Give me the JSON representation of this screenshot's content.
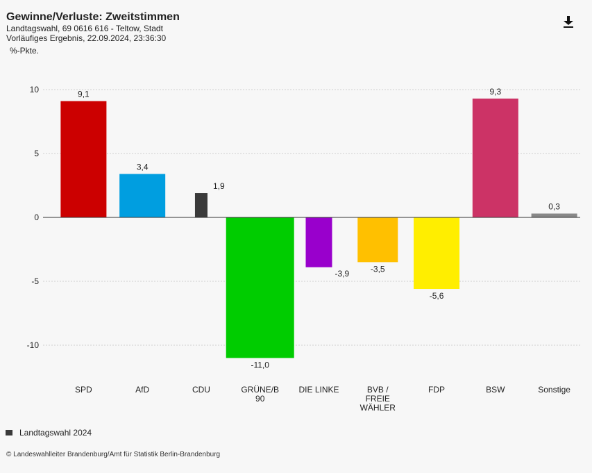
{
  "header": {
    "title": "Gewinne/Verluste: Zweitstimmen",
    "subtitle1": "Landtagswahl, 69 0616 616 - Teltow, Stadt",
    "subtitle2": "Vorläufiges Ergebnis, 22.09.2024, 23:36:30",
    "unit": "%-Pkte."
  },
  "toolbar": {
    "download_icon": "download-icon"
  },
  "legend": {
    "label": "Landtagswahl 2024",
    "color": "#3a3a3a"
  },
  "footer": {
    "source": "© Landeswahlleiter Brandenburg/Amt für Statistik Berlin-Brandenburg"
  },
  "chart_data": {
    "type": "bar",
    "categories": [
      "SPD",
      "AfD",
      "CDU",
      "GRÜNE/B 90",
      "DIE LINKE",
      "BVB / FREIE WÄHLER",
      "FDP",
      "BSW",
      "Sonstige"
    ],
    "category_lines": [
      [
        "SPD"
      ],
      [
        "AfD"
      ],
      [
        "CDU"
      ],
      [
        "GRÜNE/B",
        "90"
      ],
      [
        "DIE LINKE"
      ],
      [
        "BVB /",
        "FREIE",
        "WÄHLER"
      ],
      [
        "FDP"
      ],
      [
        "BSW"
      ],
      [
        "Sonstige"
      ]
    ],
    "values": [
      9.1,
      3.4,
      1.9,
      -11.0,
      -3.9,
      -3.5,
      -5.6,
      9.3,
      0.3
    ],
    "value_labels": [
      "9,1",
      "3,4",
      "1,9",
      "-11,0",
      "-3,9",
      "-3,5",
      "-5,6",
      "9,3",
      "0,3"
    ],
    "colors": [
      "#cc0000",
      "#009ee0",
      "#3a3a3a",
      "#00cc00",
      "#9900cc",
      "#ffc000",
      "#ffee00",
      "#cc3366",
      "#888888"
    ],
    "yticks": [
      10,
      5,
      0,
      -5,
      -10
    ],
    "ylim": [
      -11,
      10
    ],
    "grid": true,
    "legend_position": "bottom-left"
  }
}
